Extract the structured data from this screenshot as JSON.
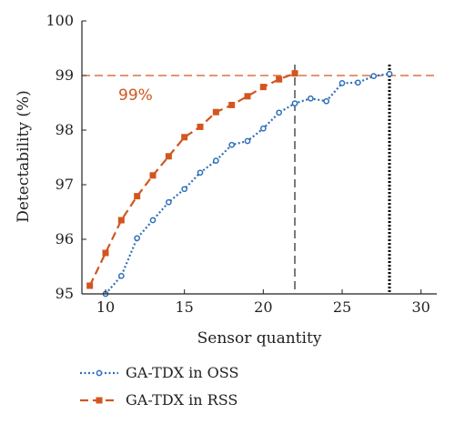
{
  "chart_data": {
    "type": "line",
    "xlabel": "Sensor quantity",
    "ylabel": "Detectability (%)",
    "xlim": [
      8.5,
      31
    ],
    "ylim": [
      95,
      100
    ],
    "xticks": [
      10,
      15,
      20,
      25,
      30
    ],
    "yticks": [
      95,
      96,
      97,
      98,
      99,
      100
    ],
    "grid": false,
    "legend_position": "bottom",
    "series": [
      {
        "name": "GA-TDX in OSS",
        "color": "#2f6fb8",
        "line_style": "dotted",
        "marker": "circle",
        "x": [
          10,
          11,
          12,
          13,
          14,
          15,
          16,
          17,
          18,
          19,
          20,
          21,
          22,
          23,
          24,
          25,
          26,
          27,
          28
        ],
        "y": [
          94.96,
          95.33,
          96.02,
          96.35,
          96.68,
          96.92,
          97.22,
          97.44,
          97.73,
          97.8,
          98.03,
          98.32,
          98.49,
          98.58,
          98.53,
          98.86,
          98.87,
          98.99,
          99.03
        ]
      },
      {
        "name": "GA-TDX in RSS",
        "color": "#d2561f",
        "line_style": "dashed",
        "marker": "square",
        "x": [
          9,
          10,
          11,
          12,
          13,
          14,
          15,
          16,
          17,
          18,
          19,
          20,
          21,
          22
        ],
        "y": [
          95.15,
          95.75,
          96.35,
          96.79,
          97.17,
          97.52,
          97.87,
          98.06,
          98.33,
          98.46,
          98.62,
          98.79,
          98.93,
          99.04
        ]
      }
    ],
    "reference_lines": [
      {
        "orientation": "horizontal",
        "value": 99,
        "color": "#d2561f",
        "style": "dashed"
      },
      {
        "orientation": "vertical",
        "value": 22,
        "color": "#333333",
        "style": "dashed"
      },
      {
        "orientation": "vertical",
        "value": 28,
        "color": "#000000",
        "style": "dotted"
      }
    ],
    "annotations": [
      {
        "text": "99%",
        "color": "#d2561f"
      }
    ]
  }
}
